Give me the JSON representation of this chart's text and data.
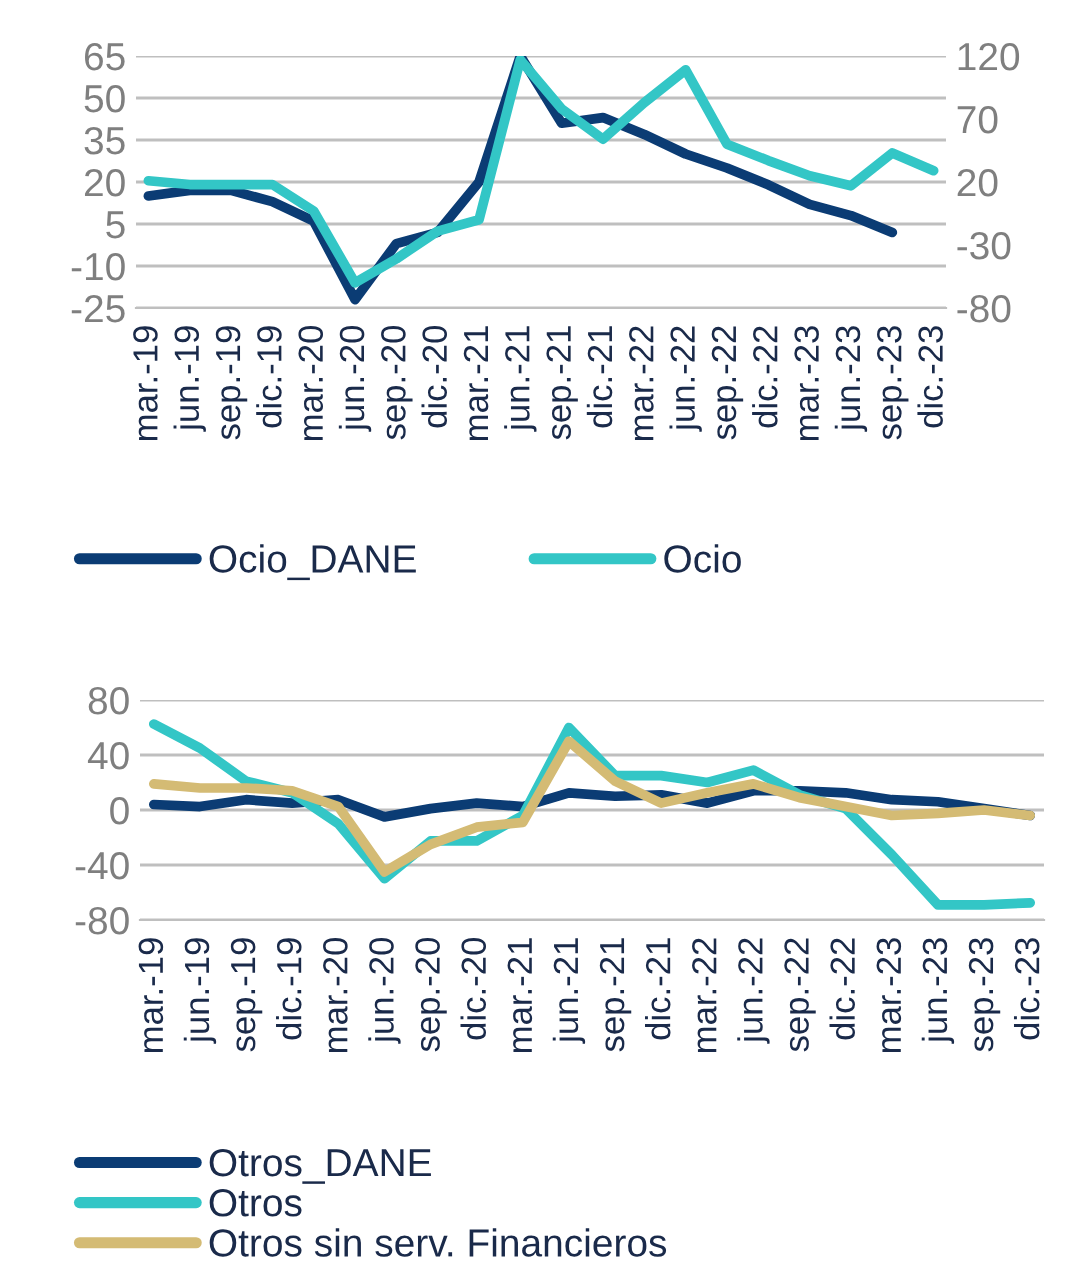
{
  "chart_data": [
    {
      "type": "line",
      "categories": [
        "mar.-19",
        "jun.-19",
        "sep.-19",
        "dic.-19",
        "mar.-20",
        "jun.-20",
        "sep.-20",
        "dic.-20",
        "mar.-21",
        "jun.-21",
        "sep.-21",
        "dic.-21",
        "mar.-22",
        "jun.-22",
        "sep.-22",
        "dic.-22",
        "mar.-23",
        "jun.-23",
        "sep.-23",
        "dic.-23"
      ],
      "series": [
        {
          "name": "Ocio_DANE",
          "color": "#0b3c74",
          "values": [
            15,
            17,
            17,
            13,
            6,
            -22,
            -2,
            2,
            20,
            65,
            41,
            43,
            37,
            30,
            25,
            19,
            12,
            8,
            2,
            null
          ]
        },
        {
          "name": "Ocio",
          "color": "#33c6c6",
          "axis": "y2",
          "values": [
            21,
            18,
            18,
            18,
            -3,
            -60,
            -41,
            -19,
            -10,
            117,
            78,
            54,
            83,
            109,
            50,
            37,
            25,
            17,
            43,
            29
          ]
        }
      ],
      "ylim": [
        -25,
        65
      ],
      "yticks": [
        -25,
        -10,
        5,
        20,
        35,
        50,
        65
      ],
      "y2lim": [
        -80,
        120
      ],
      "y2ticks": [
        -80,
        -30,
        20,
        70,
        120
      ],
      "grid": "y",
      "legend": "bottom",
      "marker": "none",
      "line_style": "solid"
    },
    {
      "type": "line",
      "categories": [
        "mar.-19",
        "jun.-19",
        "sep.-19",
        "dic.-19",
        "mar.-20",
        "jun.-20",
        "sep.-20",
        "dic.-20",
        "mar.-21",
        "jun.-21",
        "sep.-21",
        "dic.-21",
        "mar.-22",
        "jun.-22",
        "sep.-22",
        "dic.-22",
        "mar.-23",
        "jun.-23",
        "sep.-23",
        "dic.-23"
      ],
      "series": [
        {
          "name": "Otros_DANE",
          "color": "#0b3c74",
          "values": [
            4,
            2.5,
            7.5,
            5,
            7.5,
            -5,
            1,
            5,
            2.5,
            12.5,
            10,
            11,
            5,
            14,
            14,
            12.5,
            7.5,
            6,
            1,
            -4
          ]
        },
        {
          "name": "Otros",
          "color": "#33c6c6",
          "values": [
            62.5,
            45,
            21,
            12.5,
            -10,
            -50,
            -22.5,
            -22.5,
            -4,
            60,
            25,
            25,
            20,
            29,
            11,
            1,
            -32.5,
            -69,
            -69,
            -67.5
          ]
        },
        {
          "name": "Otros sin serv. Financieros",
          "color": "#d4bb74",
          "values": [
            19,
            16,
            16,
            14,
            2.5,
            -45,
            -25,
            -12.5,
            -9,
            50,
            21,
            5,
            12.5,
            19,
            9,
            2.5,
            -4,
            -2.5,
            0,
            -4
          ]
        }
      ],
      "ylim": [
        -80,
        80
      ],
      "yticks": [
        -80,
        -40,
        0,
        40,
        80
      ],
      "grid": "y",
      "legend": "bottom",
      "marker": "none",
      "line_style": "solid"
    }
  ]
}
